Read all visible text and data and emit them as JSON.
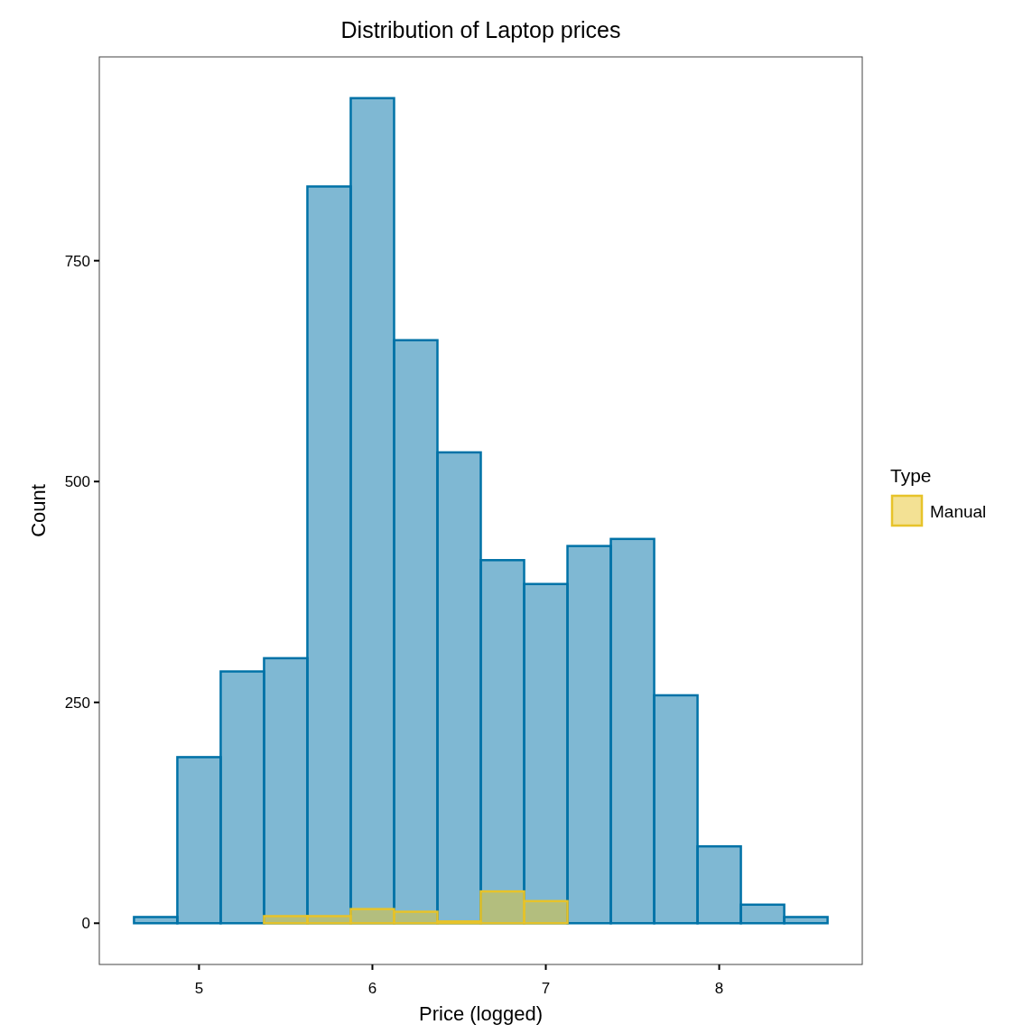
{
  "chart_data": {
    "type": "histogram",
    "title": "Distribution of Laptop prices",
    "xlabel": "Price (logged)",
    "ylabel": "Count",
    "legend_title": "Type",
    "bins": [
      4.625,
      4.875,
      5.125,
      5.375,
      5.625,
      5.875,
      6.125,
      6.375,
      6.625,
      6.875,
      7.125,
      7.375,
      7.625,
      7.875,
      8.125,
      8.375,
      8.625
    ],
    "series": [
      {
        "color": "#0072a7",
        "values": [
          7,
          188,
          285,
          300,
          834,
          934,
          660,
          533,
          411,
          384,
          427,
          435,
          258,
          87,
          21,
          7
        ]
      },
      {
        "name": "Manual",
        "color": "#e7c32a",
        "values": [
          0,
          0,
          0,
          8,
          8,
          16,
          13,
          2,
          36,
          25,
          0,
          0,
          0,
          0,
          0,
          0
        ]
      }
    ],
    "xlim": [
      4.425,
      8.825
    ],
    "ylim": [
      -46.7,
      980.7
    ],
    "xticks": [
      5,
      6,
      7,
      8
    ],
    "yticks": [
      0,
      250,
      500,
      750
    ],
    "grid": false,
    "legend": "right"
  }
}
